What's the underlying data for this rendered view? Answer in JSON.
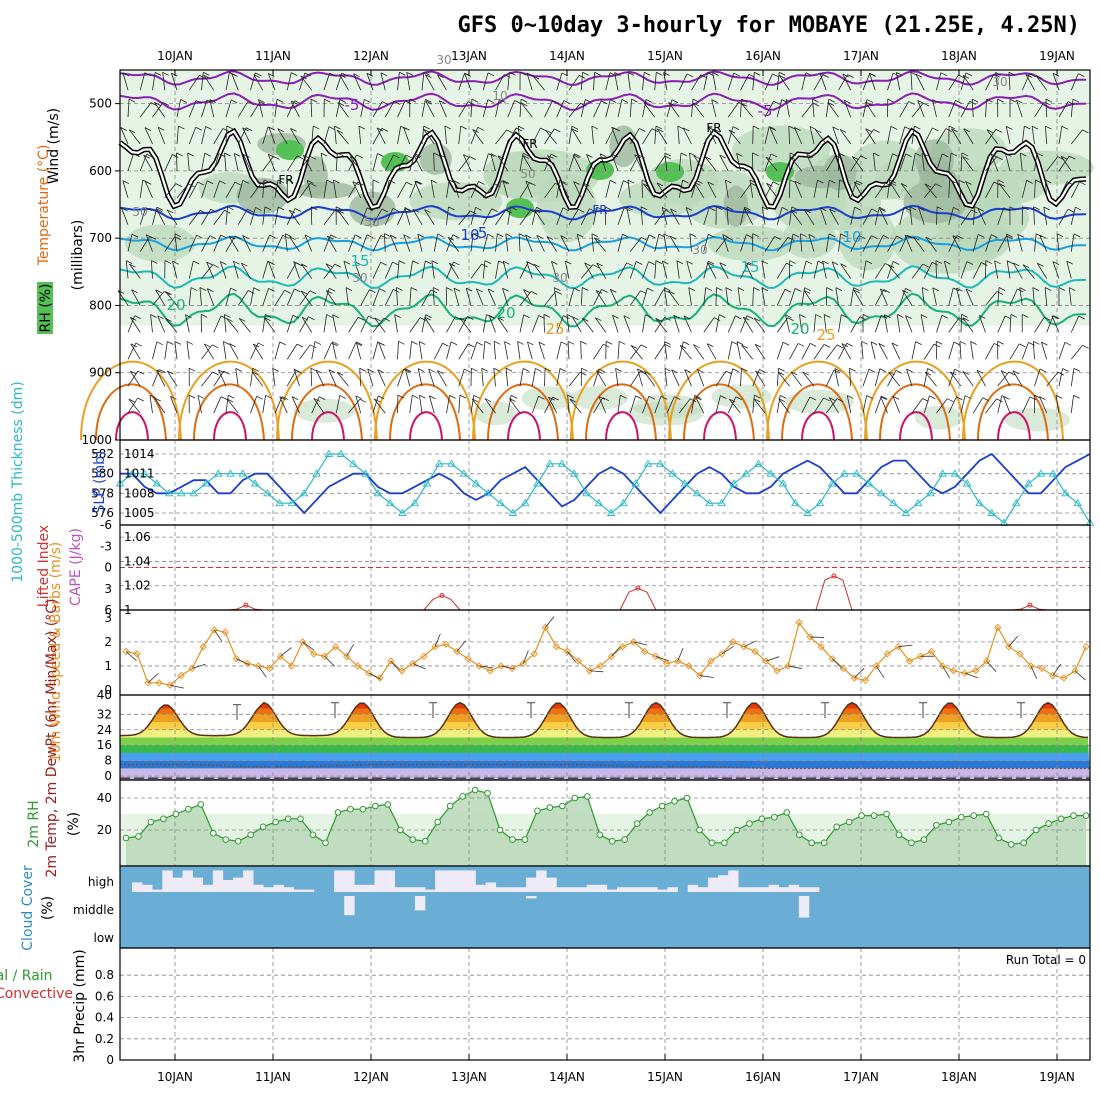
{
  "title": "GFS 0~10day 3-hourly for MOBAYE (21.25E, 4.25N)",
  "colors": {
    "rh_light": "#e6f4e6",
    "rh_mid": "#b9d8b9",
    "rh_dark": "#9db89d",
    "rh_green": "#55c055",
    "temp_purple": "#8a1fb8",
    "temp_blue": "#1a3fcf",
    "temp_ltblue": "#1a9fe0",
    "temp_teal": "#1fb8b8",
    "temp_green": "#19b07a",
    "temp_gold": "#e8a020",
    "temp_orange": "#e06a10",
    "temp_magenta": "#d0106a",
    "slp": "#1a3fcf",
    "thick": "#2bb8c8",
    "li": "#d03030",
    "cape": "#c050c0",
    "wind": "#e8901e",
    "rh2m": "#2e9a2e",
    "rh2m_fill": "#b9d8b9",
    "cloud": "#6aaed6",
    "gap": "#eeeaf6",
    "grid": "#888888"
  },
  "chart_data": [
    {
      "panel": "upper-air",
      "type": "contour",
      "ylabels": {
        "wind": "Wind (m/s)",
        "temp": "Temperature (°C)",
        "rh": "RH (%)",
        "unit": "(millibars)"
      },
      "y_ticks": [
        "500",
        "600",
        "700",
        "800",
        "900",
        "1000"
      ],
      "contour_labels": [
        "-5",
        "-5",
        "FR",
        "FR",
        "FR",
        "FR",
        "-5",
        "10",
        "10",
        "15",
        "15",
        "20",
        "20",
        "20",
        "25",
        "25",
        "30",
        "30",
        "30",
        "30",
        "30",
        "10",
        "50",
        "50",
        "50"
      ],
      "temperature_levels_mb": {
        "-5": 497,
        "0": 598,
        "5": 662,
        "10": 708,
        "15": 758,
        "20": 807
      }
    },
    {
      "panel": "slp-thickness",
      "type": "line",
      "ylabel_left": "1000-500mb Thickness (dm)",
      "ylabel_right": "SLP (mb)",
      "left_ticks": [
        "582",
        "580",
        "578",
        "576"
      ],
      "right_ticks": [
        "1014",
        "1011",
        "1008",
        "1005"
      ],
      "series": [
        {
          "name": "SLP",
          "values": [
            1011,
            1011,
            1009,
            1008,
            1008,
            1009,
            1010,
            1010,
            1008,
            1008,
            1010,
            1011,
            1011,
            1009,
            1007,
            1005,
            1007,
            1009,
            1010,
            1011,
            1011,
            1009,
            1008,
            1008,
            1009,
            1010,
            1011,
            1010,
            1008,
            1007,
            1008,
            1010,
            1011,
            1012,
            1010,
            1008,
            1006,
            1007,
            1009,
            1011,
            1012,
            1011,
            1009,
            1007,
            1005,
            1007,
            1009,
            1011,
            1012,
            1011,
            1009,
            1008,
            1008,
            1009,
            1011,
            1012,
            1013,
            1012,
            1010,
            1008,
            1008,
            1010,
            1012,
            1013,
            1013,
            1011,
            1009,
            1008,
            1009,
            1011,
            1013,
            1014,
            1012,
            1010,
            1008,
            1008,
            1010,
            1012,
            1013,
            1014
          ]
        },
        {
          "name": "Thickness",
          "values": [
            579,
            580,
            580,
            579,
            578,
            578,
            578,
            579,
            580,
            580,
            580,
            579,
            578,
            577,
            577,
            578,
            580,
            582,
            582,
            581,
            580,
            578,
            577,
            576,
            577,
            579,
            581,
            581,
            580,
            579,
            578,
            577,
            576,
            577,
            579,
            581,
            581,
            580,
            578,
            577,
            576,
            577,
            579,
            581,
            581,
            580,
            579,
            578,
            577,
            577,
            579,
            580,
            581,
            580,
            579,
            577,
            576,
            577,
            579,
            580,
            580,
            579,
            578,
            577,
            576,
            577,
            578,
            580,
            580,
            579,
            577,
            576,
            575,
            577,
            579,
            580,
            580,
            578,
            577,
            575
          ]
        }
      ]
    },
    {
      "panel": "stability",
      "type": "line",
      "ylabel_left": "Lifted Index",
      "ylabel_right": "CAPE (J/kg)",
      "left_ticks": [
        "-6",
        "-3",
        "0",
        "3",
        "6"
      ],
      "right_ticks": [
        "1.06",
        "1.04",
        "1.02",
        "1"
      ],
      "bumps": [
        {
          "x": 9.3,
          "v": 1.004
        },
        {
          "x": 25.3,
          "v": 1.012
        },
        {
          "x": 41.3,
          "v": 1.018
        },
        {
          "x": 57.3,
          "v": 1.028
        },
        {
          "x": 73.3,
          "v": 1.004
        }
      ]
    },
    {
      "panel": "10m-wind",
      "type": "line",
      "ylabel": "10m Wind Speed & Barbs (m/s)",
      "y_ticks": [
        "3",
        "2",
        "1",
        "0"
      ],
      "values": [
        1.6,
        1.5,
        0.3,
        0.3,
        0.2,
        0.6,
        0.9,
        1.8,
        2.5,
        2.4,
        1.3,
        1.1,
        1.0,
        0.9,
        1.4,
        1.0,
        2.0,
        1.5,
        1.4,
        1.8,
        1.4,
        1.0,
        0.7,
        0.5,
        1.2,
        0.8,
        1.1,
        1.4,
        1.8,
        1.9,
        1.6,
        1.3,
        1.0,
        0.8,
        1.0,
        0.9,
        1.1,
        1.5,
        2.6,
        1.8,
        1.6,
        1.2,
        0.8,
        1.0,
        1.4,
        1.8,
        2.0,
        1.6,
        1.4,
        1.1,
        1.2,
        1.0,
        0.6,
        1.2,
        1.5,
        2.0,
        1.8,
        1.6,
        1.2,
        0.8,
        1.0,
        2.8,
        2.2,
        1.8,
        1.3,
        0.9,
        0.5,
        0.4,
        1.0,
        1.5,
        1.8,
        1.2,
        1.4,
        1.6,
        1.0,
        0.8,
        0.7,
        0.8,
        1.2,
        2.6,
        1.8,
        1.5,
        1.0,
        0.9,
        0.6,
        0.5,
        0.8,
        1.8
      ],
      "barbs_per_day": 8
    },
    {
      "panel": "2m-temp",
      "type": "area",
      "ylabel": "2m Temp, 2m DewPt (6hr Min/Max) (°C)",
      "y_ticks": [
        "32",
        "24",
        "16",
        "8",
        "0"
      ],
      "ylim": [
        -2,
        42
      ],
      "daily_max": [
        37,
        38,
        38,
        38,
        38,
        38,
        38,
        38,
        38
      ],
      "daily_min": [
        21,
        21,
        20,
        20,
        20,
        20,
        20,
        20,
        20
      ],
      "dewpoint": [
        3,
        3,
        2,
        2,
        3,
        3,
        3,
        3,
        2,
        2,
        1,
        1,
        1,
        1,
        1,
        1
      ]
    },
    {
      "panel": "2m-rh",
      "type": "area",
      "ylabel": "2m RH (%)",
      "y_ticks": [
        "40",
        "20"
      ],
      "ylim": [
        0,
        50
      ],
      "values": [
        15,
        16,
        25,
        27,
        30,
        33,
        36,
        18,
        14,
        13,
        17,
        22,
        25,
        27,
        27,
        17,
        12,
        31,
        33,
        33,
        35,
        36,
        20,
        14,
        13,
        25,
        35,
        41,
        45,
        43,
        20,
        14,
        14,
        32,
        34,
        35,
        40,
        41,
        17,
        13,
        14,
        24,
        31,
        35,
        38,
        40,
        20,
        12,
        12,
        20,
        24,
        27,
        28,
        31,
        17,
        12,
        12,
        22,
        25,
        29,
        29,
        30,
        17,
        12,
        14,
        23,
        25,
        28,
        29,
        30,
        15,
        11,
        12,
        20,
        24,
        27,
        29,
        29
      ]
    },
    {
      "panel": "cloud-cover",
      "type": "heatmap",
      "ylabel": "Cloud Cover (%)",
      "levels": [
        "high",
        "middle",
        "low"
      ],
      "high": [
        0.4,
        0.3,
        0.1,
        0.9,
        0.6,
        0.9,
        0.6,
        0.3,
        0.9,
        0.5,
        0.6,
        0.9,
        0.3,
        0.2,
        0.3,
        0.2,
        0.1,
        0.1,
        0.0,
        0.0,
        0.9,
        0.9,
        0.3,
        0.3,
        0.9,
        0.9,
        0.2,
        0.2,
        0.2,
        0.1,
        0.9,
        0.9,
        0.9,
        0.9,
        0.3,
        0.4,
        0.2,
        0.2,
        0.2,
        0.6,
        0.9,
        0.6,
        0.2,
        0.2,
        0.2,
        0.3,
        0.3,
        0.1,
        0.2,
        0.2,
        0.2,
        0.2,
        0.1,
        0.2,
        0.0,
        0.3,
        0.2,
        0.6,
        0.7,
        0.9,
        0.2,
        0.2,
        0.2,
        0.3,
        0.2,
        0.3,
        0.2,
        0.2,
        0.0,
        0.0,
        0.0,
        0.0,
        0.0,
        0.0,
        0.0,
        0.0,
        0.0,
        0.0,
        0.0,
        0.0
      ],
      "middle": [
        0,
        0,
        0,
        0,
        0,
        0,
        0,
        0,
        0,
        0,
        0,
        0,
        0,
        0,
        0,
        0,
        0,
        0,
        0,
        0,
        0,
        0.8,
        0,
        0,
        0,
        0,
        0,
        0,
        0.6,
        0,
        0,
        0,
        0,
        0,
        0,
        0,
        0,
        0,
        0,
        0.1,
        0,
        0,
        0,
        0,
        0,
        0,
        0,
        0,
        0,
        0,
        0,
        0,
        0,
        0,
        0,
        0,
        0,
        0,
        0,
        0,
        0,
        0,
        0,
        0,
        0,
        0,
        0.9,
        0,
        0,
        0,
        0,
        0,
        0,
        0,
        0,
        0,
        0,
        0,
        0,
        0
      ],
      "low": []
    },
    {
      "panel": "precip",
      "type": "bar",
      "ylabel": "3hr Precip (mm)",
      "legend": [
        "Total / Rain",
        "Convective"
      ],
      "y_ticks": [
        "0.8",
        "0.6",
        "0.4",
        "0.2",
        "0"
      ],
      "ylim": [
        0,
        1
      ],
      "values": [],
      "annotation": "Run Total = 0"
    }
  ],
  "x_axis": {
    "days": [
      "10JAN",
      "11JAN",
      "12JAN",
      "13JAN",
      "14JAN",
      "15JAN",
      "16JAN",
      "17JAN",
      "18JAN",
      "19JAN"
    ]
  }
}
